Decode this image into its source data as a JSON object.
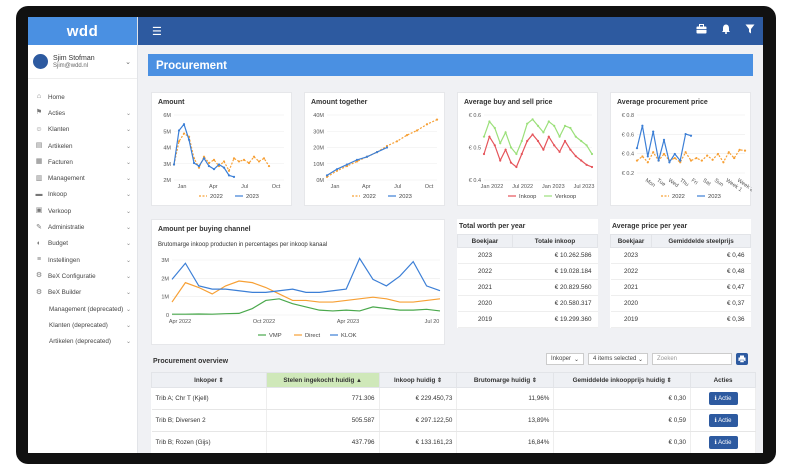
{
  "app": {
    "logo": "wdd"
  },
  "user": {
    "name": "Sjim Stofman",
    "email": "Sjim@wdd.nl"
  },
  "menu": [
    {
      "label": "Home",
      "icon": "home-icon",
      "chev": false
    },
    {
      "label": "Acties",
      "icon": "actions-icon",
      "chev": true
    },
    {
      "label": "Klanten",
      "icon": "customers-icon",
      "chev": true
    },
    {
      "label": "Artikelen",
      "icon": "articles-icon",
      "chev": true
    },
    {
      "label": "Facturen",
      "icon": "invoices-icon",
      "chev": true
    },
    {
      "label": "Management",
      "icon": "bar-chart-icon",
      "chev": true
    },
    {
      "label": "Inkoop",
      "icon": "truck-icon",
      "chev": true
    },
    {
      "label": "Verkoop",
      "icon": "sales-icon",
      "chev": true
    },
    {
      "label": "Administratie",
      "icon": "admin-icon",
      "chev": true
    },
    {
      "label": "Budget",
      "icon": "budget-icon",
      "chev": true
    },
    {
      "label": "Instellingen",
      "icon": "settings-icon",
      "chev": true
    },
    {
      "label": "BeX Configuratie",
      "icon": "cogs-icon",
      "chev": true
    },
    {
      "label": "BeX Builder",
      "icon": "cogs-icon",
      "chev": true
    },
    {
      "label": "Management (deprecated)",
      "icon": "",
      "chev": true,
      "sub": true
    },
    {
      "label": "Klanten (deprecated)",
      "icon": "",
      "chev": true,
      "sub": true
    },
    {
      "label": "Artikelen (deprecated)",
      "icon": "",
      "chev": true,
      "sub": true
    }
  ],
  "page": {
    "title": "Procurement"
  },
  "cards": {
    "amount": "Amount",
    "amount_together": "Amount together",
    "avg_buy_sell": "Average buy and sell price",
    "avg_procurement": "Average procurement price",
    "per_channel": "Amount per buying channel",
    "per_channel_subtitle": "Brutomarge inkoop producten in percentages per inkoop kanaal"
  },
  "chart_data": [
    {
      "type": "line",
      "title": "Amount",
      "x_ticks": [
        "Jan",
        "Apr",
        "Jul",
        "Oct"
      ],
      "y_ticks": [
        "2M",
        "3M",
        "4M",
        "5M",
        "6M"
      ],
      "ylim": [
        2,
        6.2
      ],
      "series": [
        {
          "name": "2022",
          "color": "#f7a035",
          "dash": true,
          "x": [
            0,
            0.5,
            1,
            1.5,
            2,
            2.5,
            3,
            3.5,
            4,
            4.5,
            5,
            5.5,
            6,
            6.5,
            7,
            7.5,
            8,
            8.5,
            9,
            9.5
          ],
          "values": [
            3,
            4.5,
            5,
            4.8,
            3.4,
            2.8,
            3.5,
            3.1,
            3.3,
            2.9,
            3.2,
            2.6,
            3.4,
            3.2,
            3.3,
            3.1,
            3.5,
            3.2,
            3.4,
            2.9
          ]
        },
        {
          "name": "2023",
          "color": "#3c7fd6",
          "dash": false,
          "x": [
            0,
            0.5,
            1,
            1.5,
            2,
            2.5,
            3,
            3.5,
            4,
            4.5,
            5,
            5.5,
            6
          ],
          "values": [
            3.0,
            5.2,
            5.6,
            4.6,
            3.1,
            2.9,
            3.4,
            2.9,
            2.7,
            3.0,
            2.8,
            2.3,
            2.2
          ]
        }
      ]
    },
    {
      "type": "line",
      "title": "Amount together",
      "x_ticks": [
        "Jan",
        "Apr",
        "Jul",
        "Oct"
      ],
      "y_ticks": [
        "0M",
        "10M",
        "20M",
        "30M",
        "40M"
      ],
      "ylim": [
        0,
        42
      ],
      "series": [
        {
          "name": "2022",
          "color": "#f7a035",
          "dash": true,
          "x": [
            0,
            1,
            2,
            3,
            4,
            5,
            6,
            7,
            8,
            9,
            10,
            11
          ],
          "values": [
            2,
            6,
            9,
            12,
            15,
            18,
            22,
            25,
            29,
            32,
            36,
            39
          ]
        },
        {
          "name": "2023",
          "color": "#3c7fd6",
          "dash": false,
          "x": [
            0,
            1,
            2,
            3,
            4,
            5,
            6
          ],
          "values": [
            3,
            7,
            10,
            13,
            15,
            18,
            21
          ]
        }
      ]
    },
    {
      "type": "line",
      "title": "Average buy and sell price",
      "x_ticks": [
        "Jan 2022",
        "Jul 2022",
        "Jan 2023",
        "Jul 2023"
      ],
      "y_ticks": [
        "€ 0.4",
        "€ 0.5",
        "€ 0.6"
      ],
      "ylim": [
        0.38,
        0.68
      ],
      "series": [
        {
          "name": "Inkoop",
          "color": "#e5545a",
          "dash": false,
          "x": [
            0,
            1,
            2,
            3,
            4,
            5,
            6,
            7,
            8,
            9,
            10,
            11,
            12,
            13,
            14,
            15,
            16,
            17,
            18,
            19,
            20
          ],
          "values": [
            0.5,
            0.58,
            0.54,
            0.47,
            0.52,
            0.46,
            0.44,
            0.5,
            0.56,
            0.59,
            0.56,
            0.52,
            0.58,
            0.54,
            0.51,
            0.56,
            0.52,
            0.49,
            0.47,
            0.45,
            0.44
          ]
        },
        {
          "name": "Verkoop",
          "color": "#9be07a",
          "dash": false,
          "x": [
            0,
            1,
            2,
            3,
            4,
            5,
            6,
            7,
            8,
            9,
            10,
            11,
            12,
            13,
            14,
            15,
            16,
            17,
            18,
            19,
            20
          ],
          "values": [
            0.58,
            0.65,
            0.62,
            0.55,
            0.6,
            0.53,
            0.5,
            0.56,
            0.64,
            0.66,
            0.63,
            0.6,
            0.65,
            0.63,
            0.58,
            0.63,
            0.62,
            0.58,
            0.56,
            0.54,
            0.5
          ]
        }
      ]
    },
    {
      "type": "line",
      "title": "Average procurement price",
      "x_ticks": [
        "Mon",
        "Tue",
        "Wed",
        "Thu",
        "Fri",
        "Sat",
        "Sun",
        "Week 1",
        "Week 2"
      ],
      "y_ticks": [
        "€ 0.2",
        "€ 0.4",
        "€ 0.6",
        "€ 0.8"
      ],
      "ylim": [
        0.15,
        0.85
      ],
      "series": [
        {
          "name": "2022",
          "color": "#f7a035",
          "dash": true,
          "x": [
            0,
            1,
            2,
            3,
            4,
            5,
            6,
            7,
            8,
            9,
            10,
            11,
            12,
            13,
            14,
            15,
            16,
            17,
            18,
            19,
            20
          ],
          "values": [
            0.3,
            0.35,
            0.28,
            0.4,
            0.3,
            0.38,
            0.3,
            0.33,
            0.28,
            0.4,
            0.3,
            0.33,
            0.3,
            0.36,
            0.31,
            0.38,
            0.28,
            0.4,
            0.33,
            0.43,
            0.42
          ]
        },
        {
          "name": "2023",
          "color": "#3c7fd6",
          "dash": false,
          "x": [
            0,
            1,
            2,
            3,
            4,
            5,
            6,
            7,
            8,
            9,
            10
          ],
          "values": [
            0.45,
            0.72,
            0.35,
            0.65,
            0.3,
            0.55,
            0.28,
            0.38,
            0.3,
            0.62,
            0.6
          ]
        }
      ]
    },
    {
      "type": "line",
      "title": "Amount per buying channel",
      "x_ticks": [
        "Apr 2022",
        "Oct 2022",
        "Apr 2023",
        "Jul 20"
      ],
      "y_ticks": [
        "0",
        "1M",
        "2M",
        "3M"
      ],
      "ylim": [
        0,
        3.4
      ],
      "series": [
        {
          "name": "VMP",
          "color": "#4aa84c",
          "x": [
            0,
            1,
            2,
            3,
            4,
            5,
            6,
            7,
            8,
            9,
            10,
            11,
            12,
            13,
            14,
            15,
            16,
            17,
            18,
            19,
            20
          ],
          "values": [
            0.05,
            0.05,
            0.06,
            0.05,
            0.08,
            0.1,
            0.4,
            0.9,
            1.0,
            0.7,
            0.5,
            0.3,
            0.25,
            0.3,
            0.25,
            0.5,
            0.4,
            0.3,
            0.3,
            0.35,
            0.25
          ]
        },
        {
          "name": "Direct",
          "color": "#f7a035",
          "x": [
            0,
            1,
            2,
            3,
            4,
            5,
            6,
            7,
            8,
            9,
            10,
            11,
            12,
            13,
            14,
            15,
            16,
            17,
            18,
            19,
            20
          ],
          "values": [
            0.8,
            2.0,
            1.7,
            1.3,
            1.8,
            2.1,
            2.0,
            1.7,
            1.3,
            0.9,
            0.9,
            0.8,
            0.8,
            0.9,
            1.0,
            1.1,
            1.0,
            0.8,
            0.8,
            0.9,
            1.0
          ]
        },
        {
          "name": "KLOK",
          "color": "#3c7fd6",
          "x": [
            0,
            1,
            2,
            3,
            4,
            5,
            6,
            7,
            8,
            9,
            10,
            11,
            12,
            13,
            14,
            15,
            16,
            17,
            18,
            19,
            20
          ],
          "values": [
            2.2,
            3.2,
            1.8,
            1.6,
            1.6,
            1.5,
            1.4,
            1.4,
            1.5,
            1.6,
            1.4,
            1.4,
            1.5,
            1.6,
            3.5,
            2.2,
            1.8,
            2.4,
            3.3,
            1.8,
            1.5
          ]
        }
      ]
    }
  ],
  "total_worth": {
    "title": "Total worth per year",
    "headers": [
      "Boekjaar",
      "Totale inkoop"
    ],
    "rows": [
      [
        "2023",
        "€ 10.262.586"
      ],
      [
        "2022",
        "€ 19.028.184"
      ],
      [
        "2021",
        "€ 20.829.560"
      ],
      [
        "2020",
        "€ 20.580.317"
      ],
      [
        "2019",
        "€ 19.299.360"
      ]
    ]
  },
  "avg_price": {
    "title": "Average price per year",
    "headers": [
      "Boekjaar",
      "Gemiddelde steelprijs"
    ],
    "rows": [
      [
        "2023",
        "€ 0,46"
      ],
      [
        "2022",
        "€ 0,48"
      ],
      [
        "2021",
        "€ 0,47"
      ],
      [
        "2020",
        "€ 0,37"
      ],
      [
        "2019",
        "€ 0,36"
      ]
    ]
  },
  "overview": {
    "title": "Procurement overview",
    "filter1": "Inkoper",
    "filter2": "4 items selected",
    "search_placeholder": "Zoeken",
    "headers": [
      "Inkoper",
      "Stelen ingekocht huidig",
      "Inkoop huidig",
      "Brutomarge huidig",
      "Gemiddelde inkoopprijs huidig",
      "Acties"
    ],
    "action_label": "Actie",
    "rows": [
      [
        "Trib A; Chr T (Kjell)",
        "771.306",
        "€ 229.450,73",
        "11,96%",
        "€ 0,30"
      ],
      [
        "Trib B; Diversen 2",
        "505.587",
        "€ 297.122,50",
        "13,89%",
        "€ 0,59"
      ],
      [
        "Trib B; Rozen (Gijs)",
        "437.796",
        "€ 133.161,23",
        "16,84%",
        "€ 0,30"
      ]
    ]
  }
}
